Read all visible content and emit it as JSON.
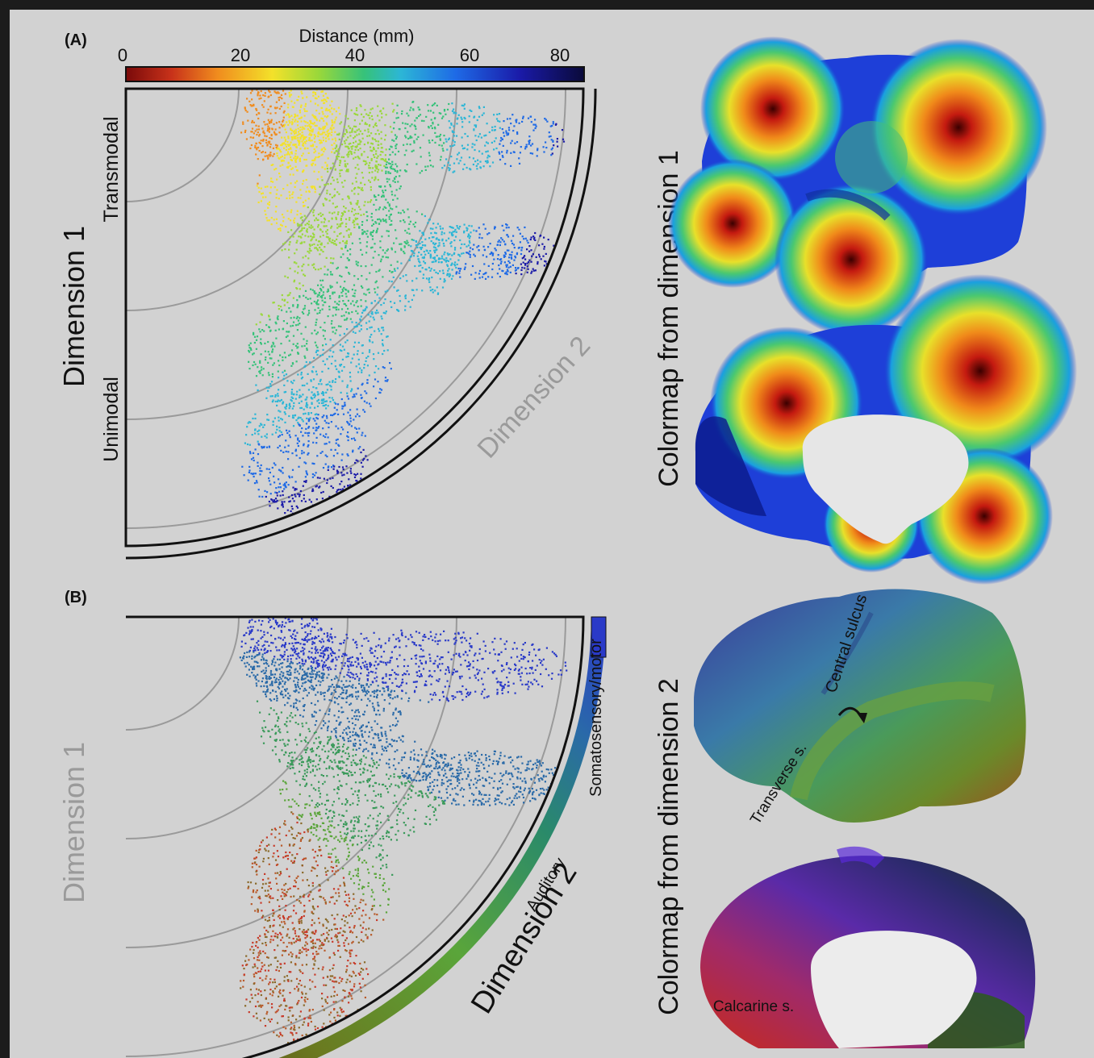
{
  "panel_a": {
    "label": "(A)",
    "colorbar": {
      "title": "Distance (mm)",
      "ticks": [
        "0",
        "20",
        "40",
        "60",
        "80"
      ],
      "stops": [
        "#7a0a0a",
        "#c8321a",
        "#f08c1e",
        "#f3e12a",
        "#9ad83a",
        "#36c27a",
        "#2cb6d6",
        "#1e6ae6",
        "#1a1aa8",
        "#0a0a3a"
      ]
    },
    "y_axis": {
      "title": "Dimension 1",
      "top_label": "Transmodal",
      "bottom_label": "Unimodal"
    },
    "arc_label": "Dimension 2",
    "brain_caption": "Colormap from dimension 1"
  },
  "panel_b": {
    "label": "(B)",
    "y_axis": {
      "title": "Dimension 1"
    },
    "arc_label": "Dimension 2",
    "arc_bar_labels": {
      "somatomotor": "Somatosensory/motor",
      "auditory": "Auditory"
    },
    "brain_caption": "Colormap from dimension 2",
    "brain_labels": {
      "central": "Central sulcus",
      "transverse": "Transverse s.",
      "calcarine": "Calcarine s."
    },
    "arc_colors": [
      "#5a2a10",
      "#8a5a1a",
      "#5aa53a",
      "#3a9a5a",
      "#2a6aa8",
      "#2a3ac8"
    ]
  }
}
